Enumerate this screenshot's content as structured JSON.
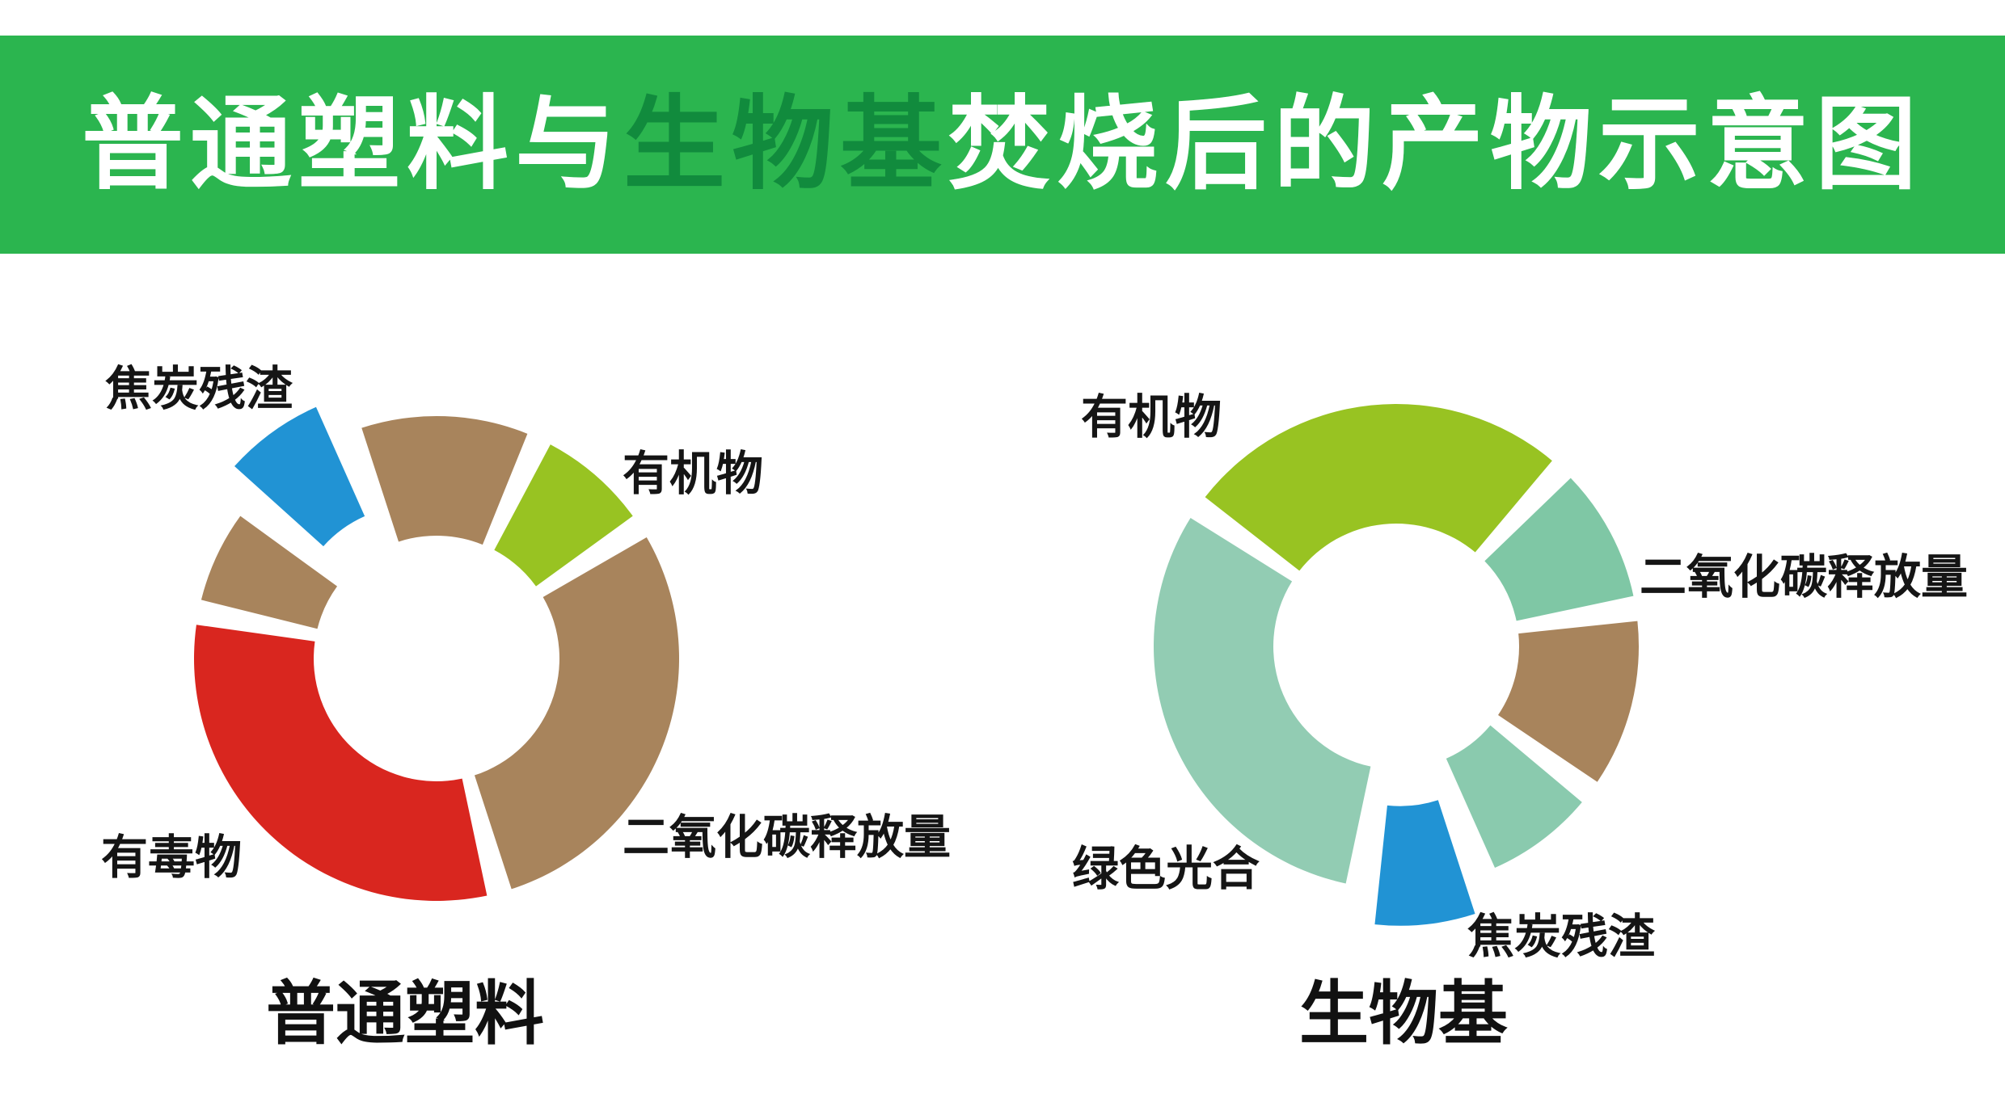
{
  "banner": {
    "bg_color": "#2bb54f",
    "title_parts": [
      {
        "text": "普通塑料与",
        "color": "#ffffff"
      },
      {
        "text": "生物基",
        "color": "#118b3d"
      },
      {
        "text": "焚烧后的产物示意图",
        "color": "#ffffff"
      }
    ]
  },
  "chart_data": [
    {
      "type": "pie",
      "subtype": "donut",
      "title": "普通塑料",
      "legend_position": "none",
      "slices": [
        {
          "id": "co2-segment-top",
          "label": "",
          "color": "#a8845c",
          "start_deg": -18,
          "end_deg": 22,
          "percent": 11.1,
          "exploded": false
        },
        {
          "id": "organic-matter",
          "label": "有机物",
          "color": "#98c322",
          "start_deg": 28,
          "end_deg": 54,
          "percent": 7.2,
          "exploded": false
        },
        {
          "id": "co2-emission",
          "label": "二氧化碳释放量",
          "color": "#a8845c",
          "start_deg": 60,
          "end_deg": 162,
          "percent": 28.3,
          "exploded": false
        },
        {
          "id": "toxic-matter",
          "label": "有毒物",
          "color": "#d9261f",
          "start_deg": 168,
          "end_deg": 278,
          "percent": 30.6,
          "exploded": false
        },
        {
          "id": "co2-segment-left",
          "label": "",
          "color": "#a8845c",
          "start_deg": 284,
          "end_deg": 306,
          "percent": 6.1,
          "exploded": false
        },
        {
          "id": "coke-residue",
          "label": "焦炭残渣",
          "color": "#2193d4",
          "start_deg": 312,
          "end_deg": 336,
          "percent": 6.7,
          "exploded": true
        }
      ]
    },
    {
      "type": "pie",
      "subtype": "donut",
      "title": "生物基",
      "legend_position": "none",
      "slices": [
        {
          "id": "organic-matter",
          "label": "有机物",
          "color": "#98c322",
          "start_deg": -52,
          "end_deg": 40,
          "percent": 25.6,
          "exploded": false
        },
        {
          "id": "co2-emission",
          "label": "二氧化碳释放量",
          "color": "#7fc7a5",
          "start_deg": 46,
          "end_deg": 78,
          "percent": 8.9,
          "exploded": false
        },
        {
          "id": "brown-segment",
          "label": "",
          "color": "#a8845c",
          "start_deg": 84,
          "end_deg": 124,
          "percent": 11.1,
          "exploded": false
        },
        {
          "id": "teal-segment",
          "label": "",
          "color": "#8acaae",
          "start_deg": 130,
          "end_deg": 156,
          "percent": 7.2,
          "exploded": false
        },
        {
          "id": "coke-residue",
          "label": "焦炭残渣",
          "color": "#2193d4",
          "start_deg": 162,
          "end_deg": 186,
          "percent": 6.7,
          "exploded": true
        },
        {
          "id": "green-photosynthesis",
          "label": "绿色光合",
          "color": "#92ccb3",
          "start_deg": 192,
          "end_deg": 302,
          "percent": 30.6,
          "exploded": false
        }
      ]
    }
  ]
}
